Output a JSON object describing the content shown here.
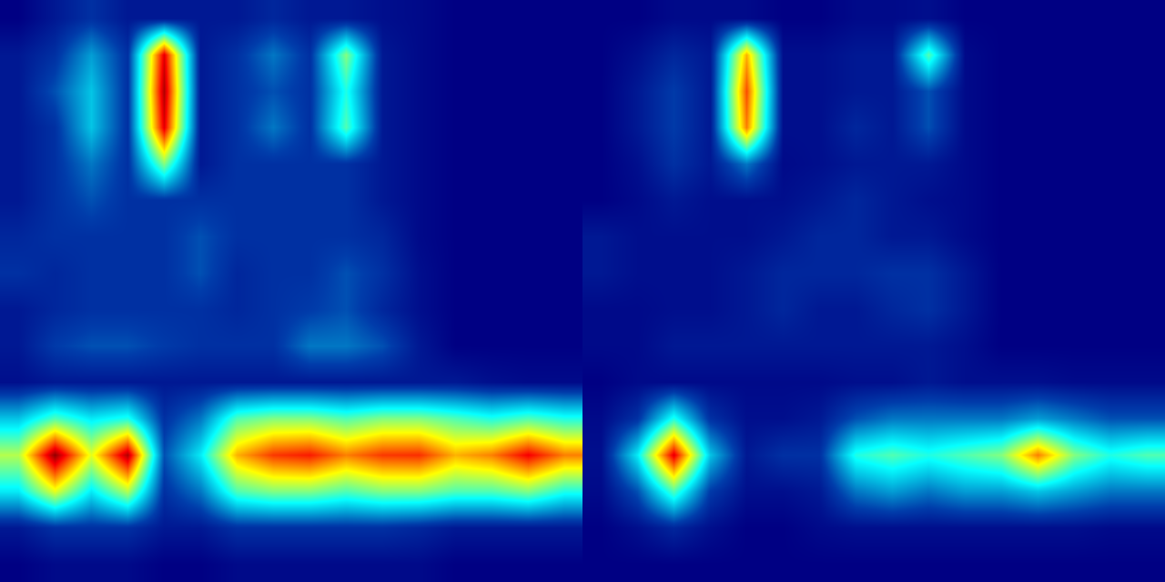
{
  "chart_data": [
    {
      "type": "heatmap",
      "color": "Jet",
      "tick_labels": false,
      "zlim": [
        0,
        1
      ],
      "cells": [
        [
          0,
          0.05,
          0.1,
          0.05,
          0.05,
          0.05,
          0.05,
          0.08,
          0.05,
          0.05,
          0.03,
          0.02,
          0,
          0,
          0,
          0
        ],
        [
          0.05,
          0.1,
          0.25,
          0.1,
          0.9,
          0.05,
          0.1,
          0.2,
          0.1,
          0.5,
          0.05,
          0.02,
          0,
          0,
          0,
          0
        ],
        [
          0.05,
          0.15,
          0.3,
          0.1,
          0.95,
          0.05,
          0.1,
          0.15,
          0.1,
          0.4,
          0.05,
          0.02,
          0,
          0,
          0,
          0
        ],
        [
          0.05,
          0.1,
          0.3,
          0.1,
          0.9,
          0.05,
          0.1,
          0.2,
          0.1,
          0.45,
          0.05,
          0.02,
          0,
          0,
          0,
          0
        ],
        [
          0.05,
          0.1,
          0.2,
          0.1,
          0.5,
          0.05,
          0.1,
          0.1,
          0.1,
          0.1,
          0.05,
          0.02,
          0,
          0,
          0,
          0
        ],
        [
          0.05,
          0.1,
          0.15,
          0.1,
          0.1,
          0.1,
          0.1,
          0.1,
          0.1,
          0.1,
          0.05,
          0.02,
          0,
          0,
          0,
          0
        ],
        [
          0.08,
          0.1,
          0.1,
          0.1,
          0.1,
          0.15,
          0.1,
          0.1,
          0.1,
          0.1,
          0.08,
          0.02,
          0,
          0,
          0,
          0
        ],
        [
          0.1,
          0.08,
          0.1,
          0.1,
          0.1,
          0.15,
          0.08,
          0.1,
          0.1,
          0.15,
          0.1,
          0.03,
          0,
          0,
          0,
          0
        ],
        [
          0.05,
          0.08,
          0.1,
          0.1,
          0.1,
          0.1,
          0.08,
          0.1,
          0.12,
          0.15,
          0.08,
          0.03,
          0,
          0,
          0,
          0
        ],
        [
          0.05,
          0.12,
          0.15,
          0.15,
          0.12,
          0.1,
          0.1,
          0.1,
          0.2,
          0.2,
          0.15,
          0.05,
          0,
          0,
          0,
          0
        ],
        [
          0.03,
          0.05,
          0.05,
          0.05,
          0.05,
          0.05,
          0.05,
          0.05,
          0.05,
          0.05,
          0.05,
          0.05,
          0.05,
          0.03,
          0.02,
          0.02
        ],
        [
          0.3,
          0.45,
          0.35,
          0.4,
          0.1,
          0.2,
          0.45,
          0.5,
          0.5,
          0.45,
          0.5,
          0.5,
          0.45,
          0.4,
          0.45,
          0.4
        ],
        [
          0.55,
          0.98,
          0.6,
          0.95,
          0.15,
          0.35,
          0.7,
          0.82,
          0.85,
          0.75,
          0.82,
          0.83,
          0.7,
          0.75,
          0.88,
          0.75
        ],
        [
          0.35,
          0.6,
          0.35,
          0.55,
          0.1,
          0.2,
          0.45,
          0.5,
          0.5,
          0.45,
          0.5,
          0.5,
          0.45,
          0.45,
          0.5,
          0.4
        ],
        [
          0.05,
          0.1,
          0.1,
          0.1,
          0.05,
          0.05,
          0.1,
          0.1,
          0.1,
          0.1,
          0.1,
          0.08,
          0.05,
          0.05,
          0.05,
          0.05
        ],
        [
          0,
          0.02,
          0.02,
          0.02,
          0,
          0,
          0.02,
          0.02,
          0.02,
          0.02,
          0.02,
          0.02,
          0,
          0,
          0,
          0
        ]
      ]
    },
    {
      "type": "heatmap",
      "color": "Jet",
      "tick_labels": false,
      "zlim": [
        0,
        1
      ],
      "cells": [
        [
          0,
          0,
          0.02,
          0.02,
          0.02,
          0,
          0,
          0.02,
          0.02,
          0.03,
          0,
          0,
          0,
          0,
          0,
          0
        ],
        [
          0,
          0.03,
          0.08,
          0.05,
          0.7,
          0.03,
          0.03,
          0.05,
          0.05,
          0.45,
          0.02,
          0,
          0,
          0,
          0,
          0
        ],
        [
          0,
          0.05,
          0.12,
          0.05,
          0.8,
          0.03,
          0.03,
          0.05,
          0.05,
          0.15,
          0.02,
          0,
          0,
          0,
          0,
          0
        ],
        [
          0,
          0.05,
          0.12,
          0.05,
          0.75,
          0.03,
          0.03,
          0.08,
          0.05,
          0.15,
          0.02,
          0,
          0,
          0,
          0,
          0
        ],
        [
          0,
          0.03,
          0.1,
          0.05,
          0.2,
          0.02,
          0.03,
          0.05,
          0.05,
          0.05,
          0.02,
          0,
          0,
          0,
          0,
          0
        ],
        [
          0,
          0.02,
          0.05,
          0.03,
          0.03,
          0.03,
          0.05,
          0.08,
          0.05,
          0.03,
          0.02,
          0,
          0,
          0,
          0,
          0
        ],
        [
          0.05,
          0.03,
          0.03,
          0.03,
          0.03,
          0.05,
          0.08,
          0.08,
          0.05,
          0.05,
          0.02,
          0,
          0,
          0,
          0,
          0
        ],
        [
          0.05,
          0.03,
          0.03,
          0.03,
          0.05,
          0.08,
          0.08,
          0.08,
          0.1,
          0.1,
          0.05,
          0,
          0,
          0,
          0,
          0
        ],
        [
          0.02,
          0.02,
          0.03,
          0.03,
          0.05,
          0.08,
          0.05,
          0.05,
          0.08,
          0.1,
          0.05,
          0,
          0,
          0,
          0,
          0
        ],
        [
          0.02,
          0.02,
          0.05,
          0.05,
          0.05,
          0.05,
          0.05,
          0.05,
          0.05,
          0.05,
          0.03,
          0,
          0,
          0,
          0,
          0
        ],
        [
          0,
          0.02,
          0.02,
          0.02,
          0.02,
          0.02,
          0.02,
          0.03,
          0.03,
          0.05,
          0.03,
          0.03,
          0.03,
          0.02,
          0.02,
          0.02
        ],
        [
          0.02,
          0.1,
          0.4,
          0.1,
          0.03,
          0.03,
          0.05,
          0.15,
          0.2,
          0.2,
          0.2,
          0.2,
          0.25,
          0.2,
          0.15,
          0.15
        ],
        [
          0.03,
          0.35,
          0.9,
          0.3,
          0.05,
          0.1,
          0.1,
          0.4,
          0.45,
          0.4,
          0.45,
          0.5,
          0.75,
          0.5,
          0.4,
          0.45
        ],
        [
          0.02,
          0.15,
          0.45,
          0.12,
          0.03,
          0.03,
          0.05,
          0.2,
          0.25,
          0.2,
          0.25,
          0.25,
          0.3,
          0.25,
          0.2,
          0.2
        ],
        [
          0,
          0.03,
          0.08,
          0.03,
          0,
          0,
          0.02,
          0.03,
          0.03,
          0.03,
          0.03,
          0.03,
          0.03,
          0.03,
          0.02,
          0.02
        ],
        [
          0,
          0,
          0,
          0,
          0,
          0,
          0,
          0,
          0,
          0,
          0,
          0,
          0,
          0,
          0,
          0
        ]
      ]
    }
  ]
}
